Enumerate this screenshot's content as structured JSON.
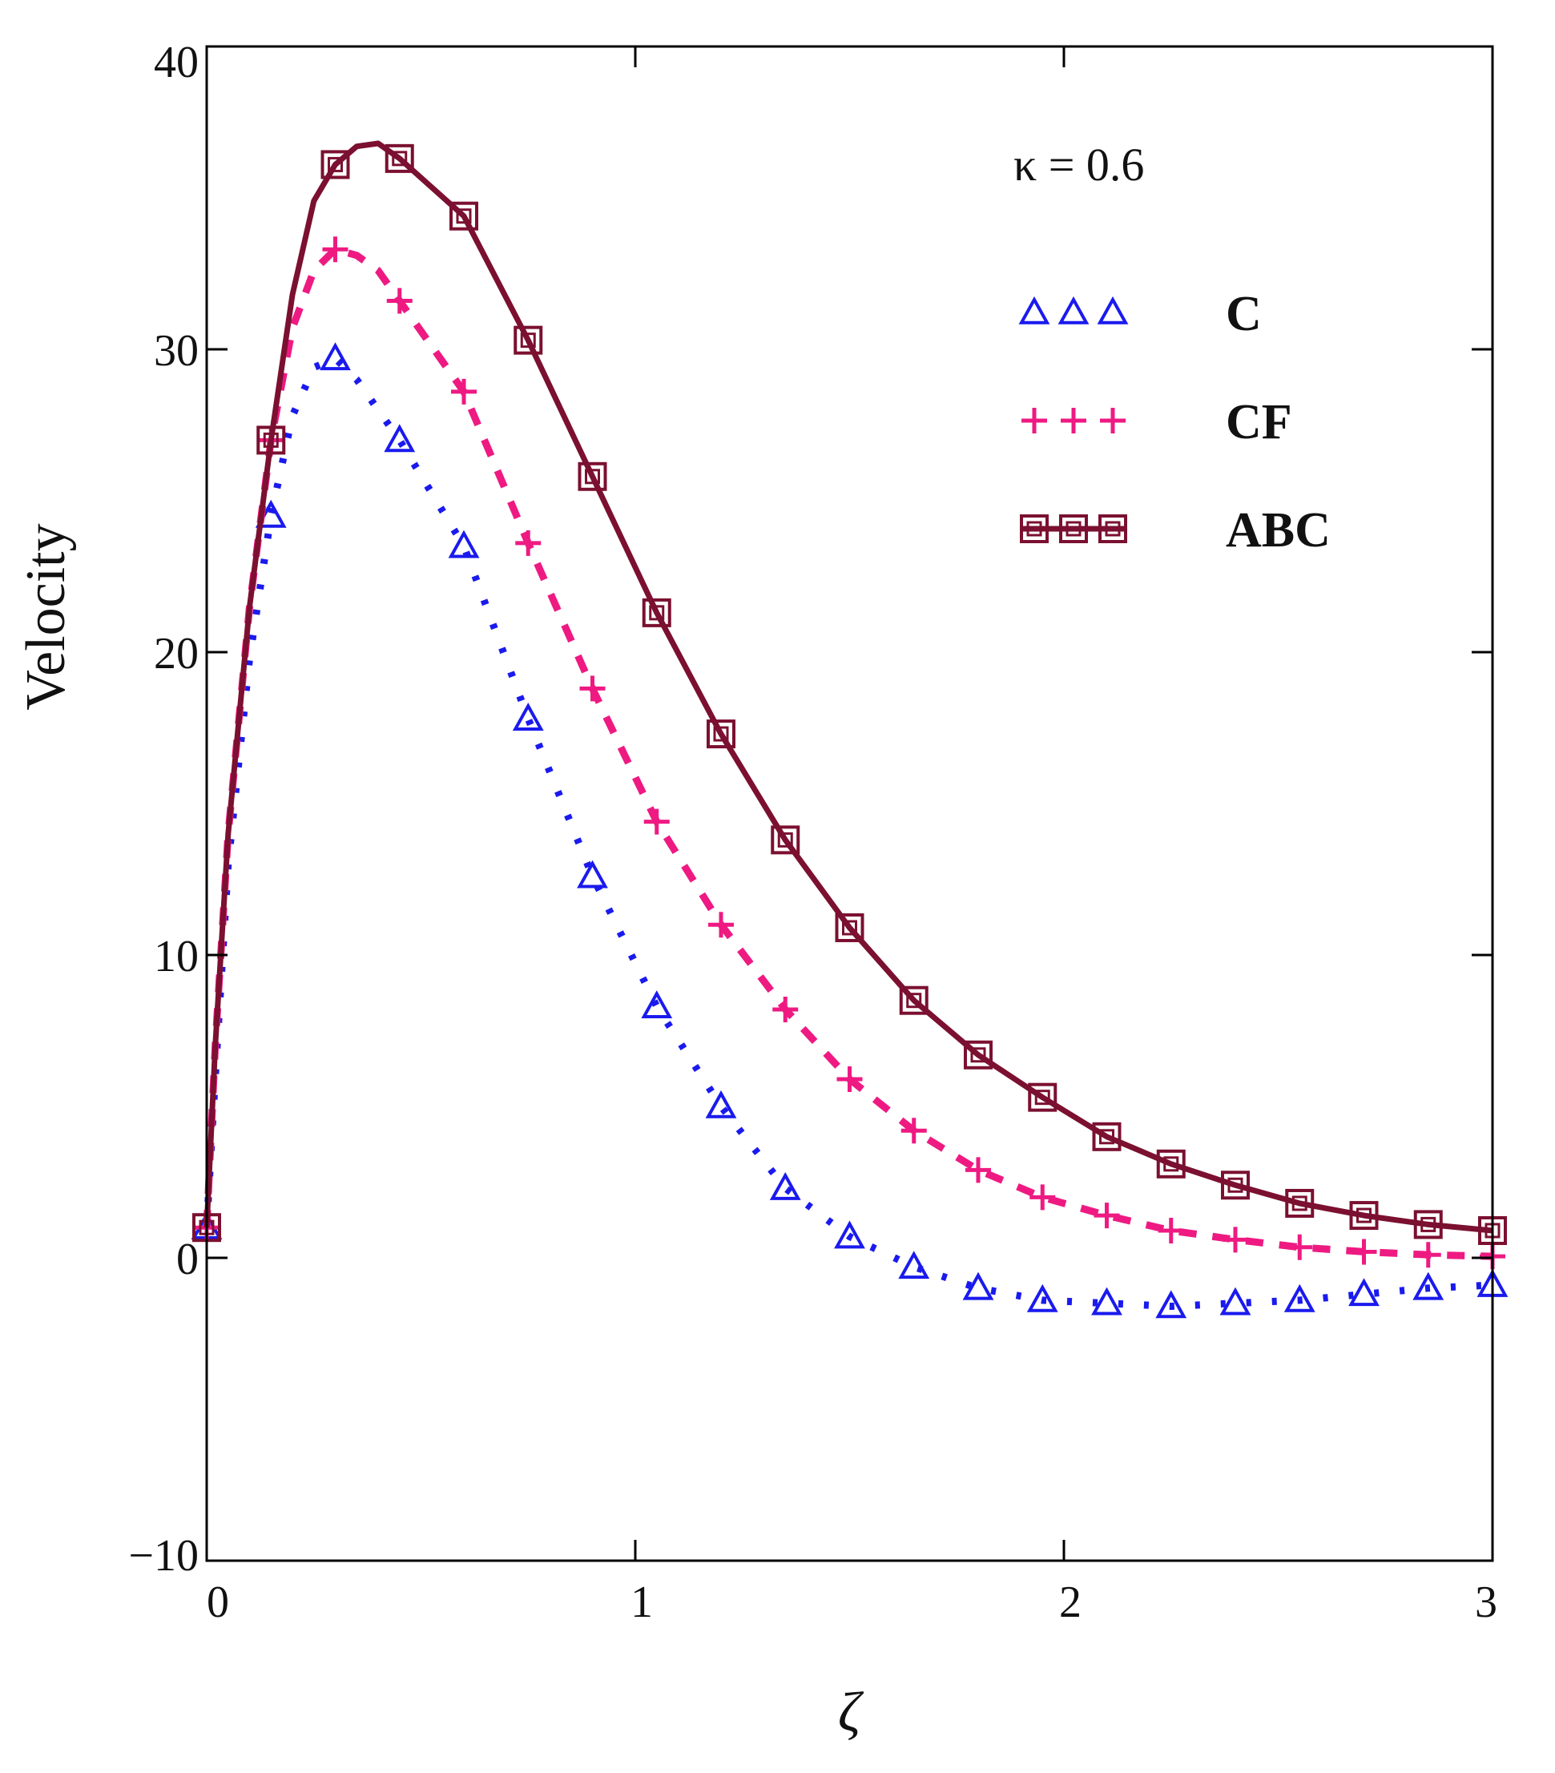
{
  "chart_data": {
    "type": "line",
    "title": "",
    "xlabel": "ζ",
    "ylabel": "Velocity",
    "xlim": [
      0,
      3
    ],
    "ylim": [
      -10,
      40
    ],
    "xticks": [
      0,
      1,
      2,
      3
    ],
    "yticks": [
      -10,
      0,
      10,
      20,
      30,
      40
    ],
    "xtick_labels": [
      "0",
      "1",
      "2",
      "3"
    ],
    "ytick_labels": [
      "−10",
      "0",
      "10",
      "20",
      "30",
      "40"
    ],
    "grid": false,
    "annotation": "κ = 0.6",
    "legend_position": "top-right",
    "series": [
      {
        "name": "C",
        "color": "#1a1aee",
        "line_style": "dotted",
        "marker": "triangle",
        "x": [
          0,
          0.02,
          0.05,
          0.1,
          0.15,
          0.2,
          0.25,
          0.3,
          0.35,
          0.4,
          0.45,
          0.6,
          0.75,
          0.9,
          1.05,
          1.2,
          1.35,
          1.5,
          1.65,
          1.8,
          1.95,
          2.1,
          2.25,
          2.4,
          2.55,
          2.7,
          2.85,
          3.0
        ],
        "y": [
          1,
          6,
          13,
          19.8,
          24.5,
          27.8,
          29.4,
          29.7,
          29.0,
          28.0,
          27.0,
          23.5,
          17.8,
          12.6,
          8.3,
          5.0,
          2.3,
          0.7,
          -0.3,
          -1.0,
          -1.4,
          -1.5,
          -1.6,
          -1.5,
          -1.4,
          -1.2,
          -1.0,
          -0.9
        ],
        "marker_x": [
          0,
          0.15,
          0.3,
          0.45,
          0.6,
          0.75,
          0.9,
          1.05,
          1.2,
          1.35,
          1.5,
          1.65,
          1.8,
          1.95,
          2.1,
          2.25,
          2.4,
          2.55,
          2.7,
          2.85,
          3.0
        ]
      },
      {
        "name": "CF",
        "color": "#ee1a82",
        "line_style": "dashed",
        "marker": "plus",
        "x": [
          0,
          0.02,
          0.05,
          0.1,
          0.15,
          0.2,
          0.25,
          0.3,
          0.35,
          0.4,
          0.45,
          0.6,
          0.75,
          0.9,
          1.05,
          1.2,
          1.35,
          1.5,
          1.65,
          1.8,
          1.95,
          2.1,
          2.25,
          2.4,
          2.55,
          2.7,
          2.85,
          3.0
        ],
        "y": [
          1,
          7,
          14,
          21.5,
          27,
          30.7,
          32.6,
          33.3,
          33.1,
          32.6,
          31.6,
          28.6,
          23.6,
          18.8,
          14.4,
          11.0,
          8.2,
          5.9,
          4.2,
          2.9,
          2.0,
          1.4,
          0.9,
          0.6,
          0.35,
          0.2,
          0.1,
          0.05
        ],
        "marker_x": [
          0,
          0.15,
          0.3,
          0.45,
          0.6,
          0.75,
          0.9,
          1.05,
          1.2,
          1.35,
          1.5,
          1.65,
          1.8,
          1.95,
          2.1,
          2.25,
          2.4,
          2.55,
          2.7,
          2.85,
          3.0
        ]
      },
      {
        "name": "ABC",
        "color": "#7b1030",
        "line_style": "solid",
        "marker": "square",
        "x": [
          0,
          0.02,
          0.05,
          0.1,
          0.15,
          0.2,
          0.25,
          0.3,
          0.35,
          0.4,
          0.45,
          0.6,
          0.75,
          0.9,
          1.05,
          1.2,
          1.35,
          1.5,
          1.65,
          1.8,
          1.95,
          2.1,
          2.25,
          2.4,
          2.55,
          2.7,
          2.85,
          3.0
        ],
        "y": [
          1,
          7,
          14,
          21.5,
          27,
          31.8,
          34.9,
          36.1,
          36.7,
          36.8,
          36.3,
          34.4,
          30.3,
          25.8,
          21.3,
          17.3,
          13.8,
          10.9,
          8.5,
          6.7,
          5.3,
          4.0,
          3.1,
          2.4,
          1.8,
          1.4,
          1.1,
          0.9
        ],
        "marker_x": [
          0,
          0.15,
          0.3,
          0.45,
          0.6,
          0.75,
          0.9,
          1.05,
          1.2,
          1.35,
          1.5,
          1.65,
          1.8,
          1.95,
          2.1,
          2.25,
          2.4,
          2.55,
          2.7,
          2.85,
          3.0
        ]
      }
    ]
  }
}
